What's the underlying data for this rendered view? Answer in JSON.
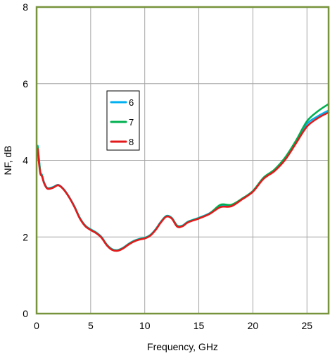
{
  "chart_data": {
    "type": "line",
    "title": "",
    "xlabel": "Frequency, GHz",
    "ylabel": "NF, dB",
    "xlim": [
      0,
      27
    ],
    "ylim": [
      0,
      8
    ],
    "x_ticks": [
      0,
      5,
      10,
      15,
      20,
      25
    ],
    "y_ticks": [
      0,
      2,
      4,
      6,
      8
    ],
    "grid": true,
    "legend_position": "upper-left-center",
    "colors": {
      "plot_border": "#77933c",
      "grid": "#a6a6a6"
    },
    "series": [
      {
        "name": "6",
        "color": "#00b0f0",
        "x": [
          0.1,
          0.2,
          0.35,
          0.5,
          0.7,
          1,
          1.5,
          2,
          2.5,
          3,
          3.5,
          4,
          4.5,
          5,
          5.5,
          6,
          6.5,
          7,
          7.5,
          8,
          8.5,
          9,
          9.5,
          10,
          10.5,
          11,
          11.5,
          12,
          12.5,
          13,
          13.5,
          14,
          15,
          16,
          17,
          18,
          19,
          20,
          21,
          22,
          23,
          24,
          25,
          26,
          27
        ],
        "y": [
          4.38,
          4.1,
          3.7,
          3.62,
          3.42,
          3.28,
          3.3,
          3.36,
          3.25,
          3.05,
          2.8,
          2.5,
          2.3,
          2.2,
          2.12,
          2.0,
          1.8,
          1.68,
          1.66,
          1.72,
          1.82,
          1.9,
          1.95,
          1.98,
          2.05,
          2.2,
          2.4,
          2.55,
          2.5,
          2.3,
          2.3,
          2.4,
          2.5,
          2.62,
          2.82,
          2.82,
          3.0,
          3.2,
          3.55,
          3.75,
          4.05,
          4.48,
          4.95,
          5.15,
          5.3
        ]
      },
      {
        "name": "7",
        "color": "#00b050",
        "x": [
          0.1,
          0.2,
          0.35,
          0.5,
          0.7,
          1,
          1.5,
          2,
          2.5,
          3,
          3.5,
          4,
          4.5,
          5,
          5.5,
          6,
          6.5,
          7,
          7.5,
          8,
          8.5,
          9,
          9.5,
          10,
          10.5,
          11,
          11.5,
          12,
          12.5,
          13,
          13.5,
          14,
          15,
          16,
          17,
          18,
          19,
          20,
          21,
          22,
          23,
          24,
          25,
          26,
          27
        ],
        "y": [
          4.35,
          4.08,
          3.68,
          3.6,
          3.4,
          3.27,
          3.29,
          3.35,
          3.24,
          3.04,
          2.79,
          2.49,
          2.29,
          2.19,
          2.11,
          1.99,
          1.79,
          1.67,
          1.65,
          1.71,
          1.81,
          1.89,
          1.94,
          1.97,
          2.04,
          2.19,
          2.39,
          2.54,
          2.49,
          2.29,
          2.29,
          2.39,
          2.49,
          2.61,
          2.84,
          2.84,
          3.0,
          3.2,
          3.55,
          3.76,
          4.08,
          4.52,
          5.02,
          5.28,
          5.47
        ]
      },
      {
        "name": "8",
        "color": "#e31a1c",
        "x": [
          0.1,
          0.2,
          0.35,
          0.5,
          0.7,
          1,
          1.5,
          2,
          2.5,
          3,
          3.5,
          4,
          4.5,
          5,
          5.5,
          6,
          6.5,
          7,
          7.5,
          8,
          8.5,
          9,
          9.5,
          10,
          10.5,
          11,
          11.5,
          12,
          12.5,
          13,
          13.5,
          14,
          15,
          16,
          17,
          18,
          19,
          20,
          21,
          22,
          23,
          24,
          25,
          26,
          27
        ],
        "y": [
          4.3,
          3.98,
          3.65,
          3.58,
          3.4,
          3.26,
          3.28,
          3.35,
          3.24,
          3.04,
          2.78,
          2.48,
          2.28,
          2.18,
          2.1,
          1.98,
          1.78,
          1.66,
          1.64,
          1.7,
          1.8,
          1.88,
          1.93,
          1.96,
          2.03,
          2.18,
          2.38,
          2.53,
          2.48,
          2.27,
          2.28,
          2.38,
          2.48,
          2.6,
          2.78,
          2.8,
          2.98,
          3.18,
          3.52,
          3.72,
          4.02,
          4.45,
          4.88,
          5.1,
          5.25
        ]
      }
    ]
  }
}
